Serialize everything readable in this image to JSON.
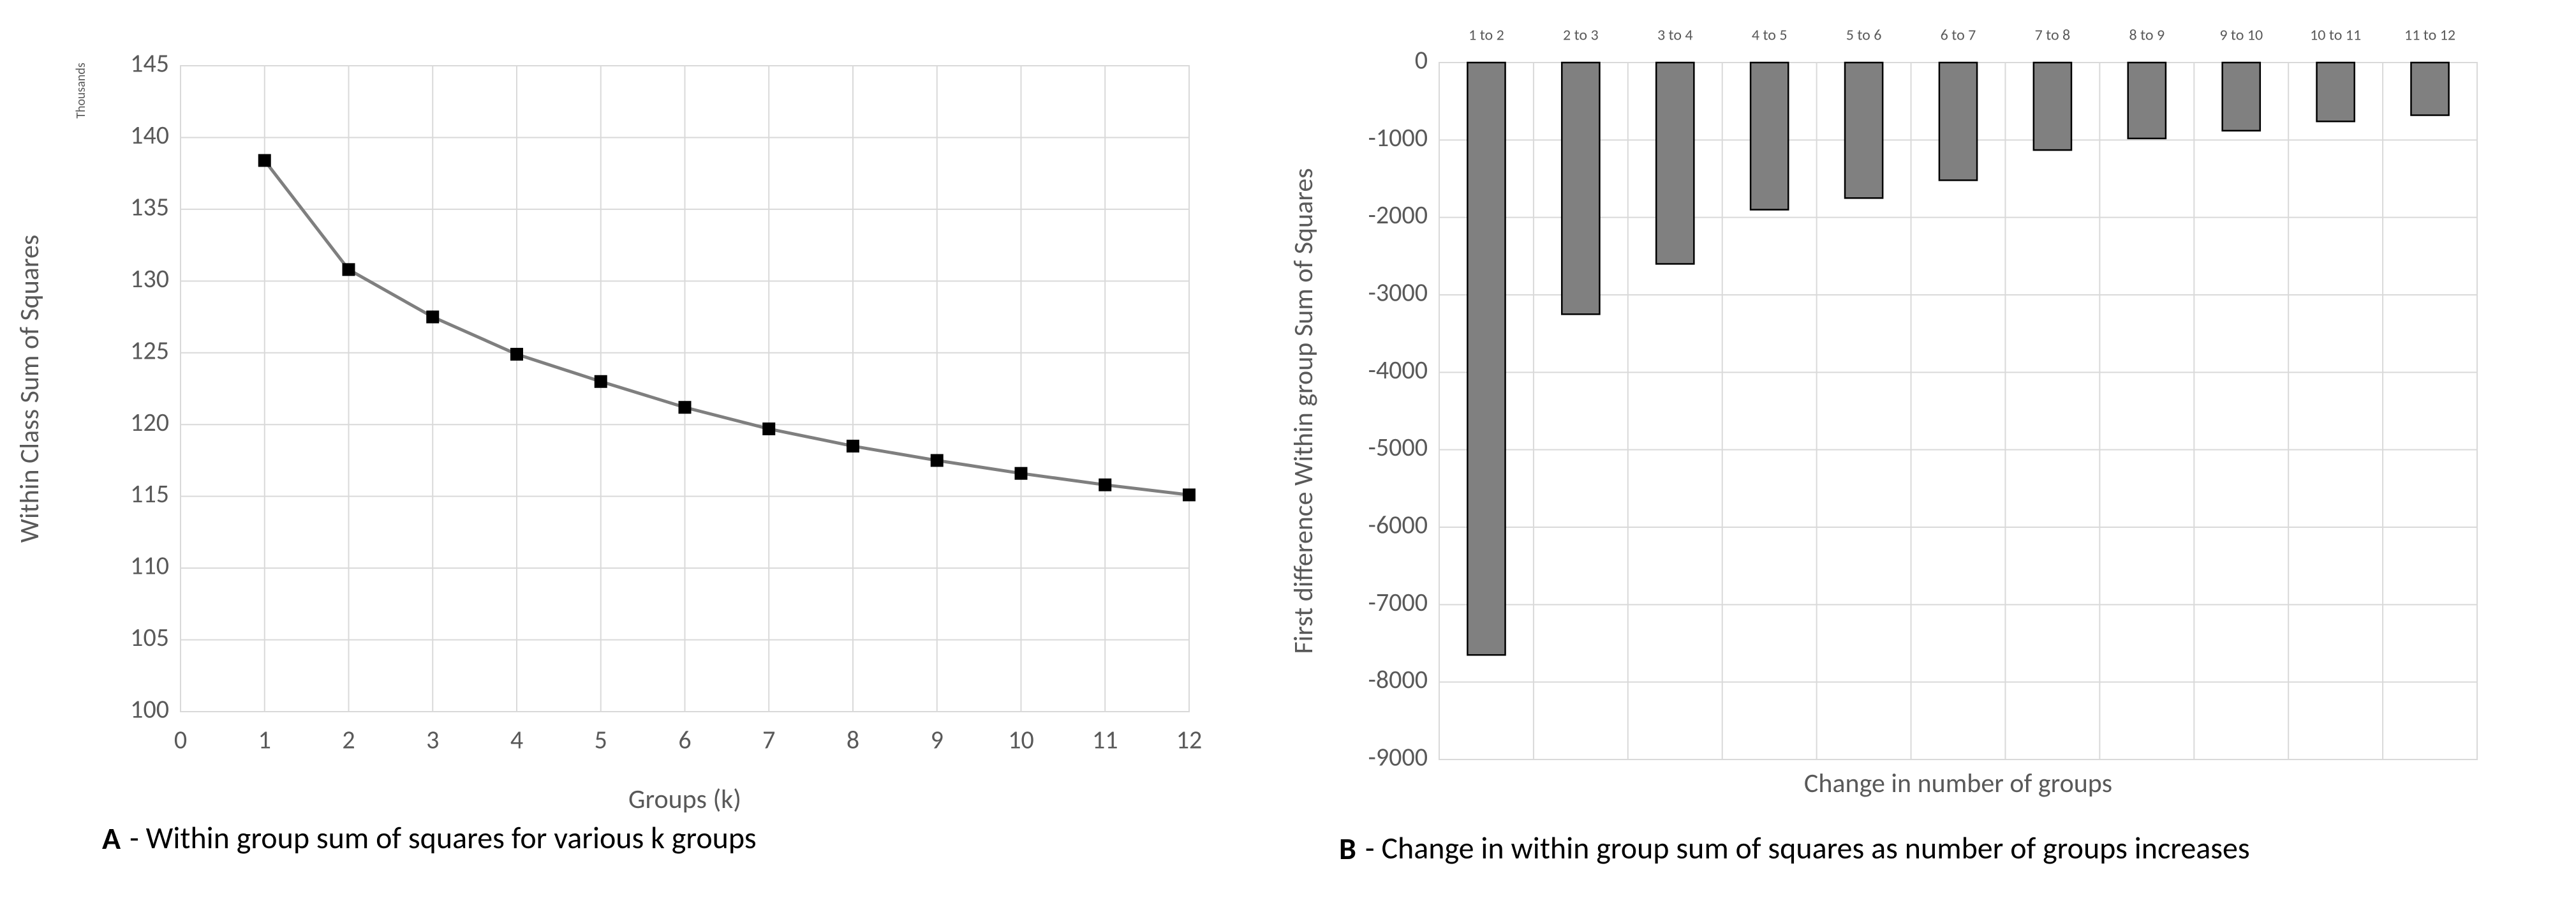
{
  "chart_data": [
    {
      "type": "line",
      "y_axis_label": "Within Class Sum of Squares",
      "y_unit_label": "Thousands",
      "x_axis_label": "Groups (k)",
      "caption": {
        "label": "A",
        "text": "- Within group sum of squares for various k groups"
      },
      "x": [
        1,
        2,
        3,
        4,
        5,
        6,
        7,
        8,
        9,
        10,
        11,
        12
      ],
      "values": [
        138.4,
        130.8,
        127.5,
        124.9,
        123.0,
        121.2,
        119.7,
        118.5,
        117.5,
        116.6,
        115.8,
        115.1
      ],
      "color": "#7f7f7f",
      "marker_color": "#000000",
      "xlim": [
        0,
        12
      ],
      "xticks": [
        0,
        1,
        2,
        3,
        4,
        5,
        6,
        7,
        8,
        9,
        10,
        11,
        12
      ],
      "ylim": [
        100,
        145
      ],
      "yticks": [
        100,
        105,
        110,
        115,
        120,
        125,
        130,
        135,
        140,
        145
      ],
      "grid": true
    },
    {
      "type": "bar",
      "y_axis_label": "First difference Within group Sum of Squares",
      "x_axis_label": "Change in number of groups",
      "caption": {
        "label": "B",
        "text": "- Change in within group sum of squares as number of groups increases"
      },
      "categories": [
        "1 to 2",
        "2 to 3",
        "3 to 4",
        "4 to 5",
        "5 to 6",
        "6 to 7",
        "7 to 8",
        "8 to 9",
        "9 to 10",
        "10 to 11",
        "11 to 12"
      ],
      "values": [
        -7650,
        -3250,
        -2600,
        -1900,
        -1750,
        -1520,
        -1130,
        -980,
        -880,
        -760,
        -680
      ],
      "color": "#808080",
      "ylim": [
        -9000,
        0
      ],
      "yticks": [
        -9000,
        -8000,
        -7000,
        -6000,
        -5000,
        -4000,
        -3000,
        -2000,
        -1000,
        0
      ],
      "grid": true
    }
  ]
}
